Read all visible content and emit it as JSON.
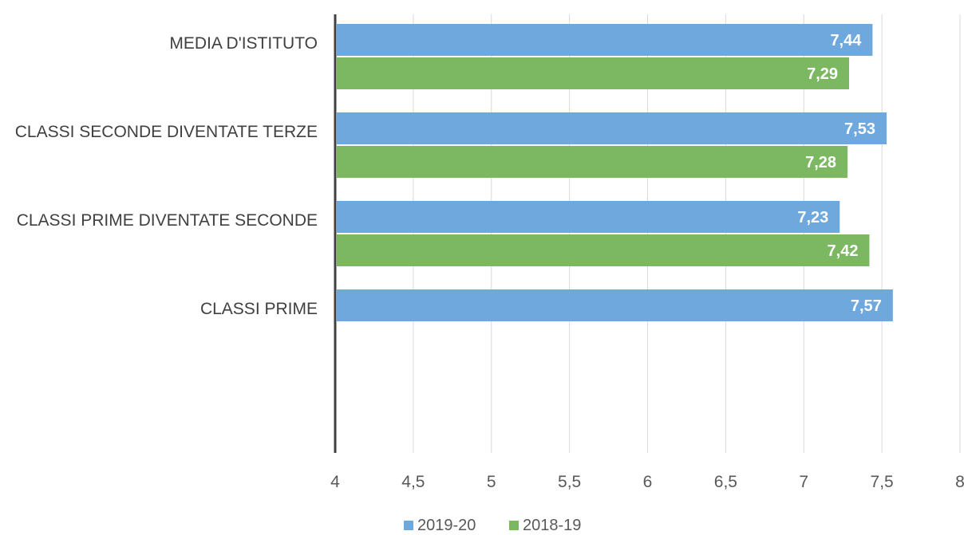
{
  "chart_data": {
    "type": "bar",
    "orientation": "horizontal",
    "categories": [
      "MEDIA D'ISTITUTO",
      "CLASSI SECONDE DIVENTATE TERZE",
      "CLASSI PRIME DIVENTATE SECONDE",
      "CLASSI PRIME"
    ],
    "series": [
      {
        "name": "2019-20",
        "color": "#6fa8dc",
        "values": [
          7.44,
          7.53,
          7.23,
          7.57
        ],
        "labels": [
          "7,44",
          "7,53",
          "7,23",
          "7,57"
        ]
      },
      {
        "name": "2018-19",
        "color": "#7cb862",
        "values": [
          7.29,
          7.28,
          7.42,
          null
        ],
        "labels": [
          "7,29",
          "7,28",
          "7,42",
          ""
        ]
      }
    ],
    "xlim": [
      4,
      8
    ],
    "xticks": [
      4,
      4.5,
      5,
      5.5,
      6,
      6.5,
      7,
      7.5,
      8
    ],
    "xtick_labels": [
      "4",
      "4,5",
      "5",
      "5,5",
      "6",
      "6,5",
      "7",
      "7,5",
      "8"
    ],
    "grid": true,
    "legend_position": "bottom-center"
  }
}
